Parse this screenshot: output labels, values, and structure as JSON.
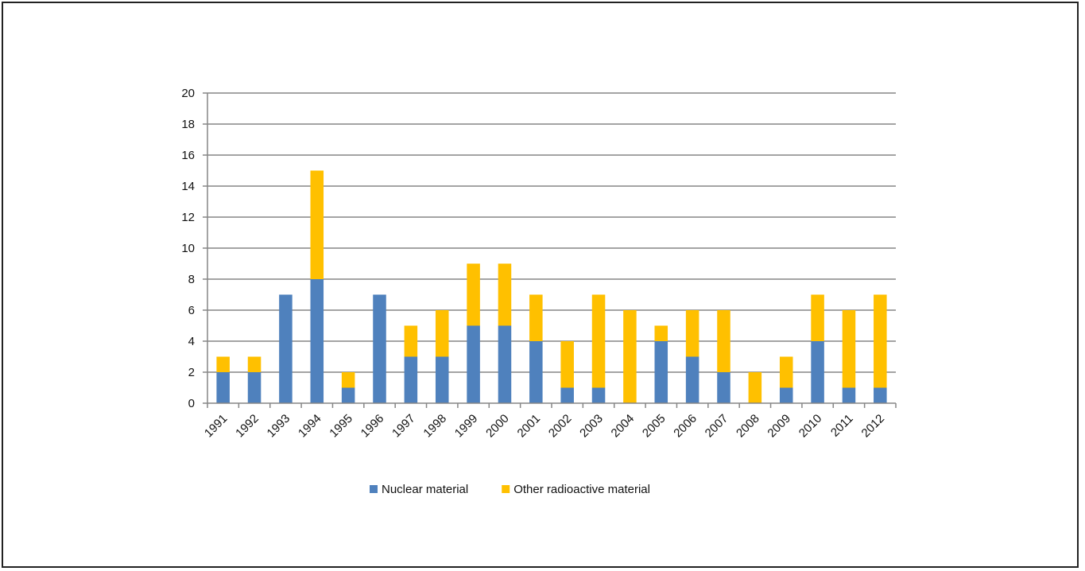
{
  "chart_data": {
    "type": "bar",
    "stacked": true,
    "title": "",
    "xlabel": "",
    "ylabel": "",
    "ylim": [
      0,
      20
    ],
    "yticks": [
      0,
      2,
      4,
      6,
      8,
      10,
      12,
      14,
      16,
      18,
      20
    ],
    "grid": true,
    "legend_position": "bottom",
    "categories": [
      "1991",
      "1992",
      "1993",
      "1994",
      "1995",
      "1996",
      "1997",
      "1998",
      "1999",
      "2000",
      "2001",
      "2002",
      "2003",
      "2004",
      "2005",
      "2006",
      "2007",
      "2008",
      "2009",
      "2010",
      "2011",
      "2012"
    ],
    "series": [
      {
        "name": "Nuclear material",
        "color": "#4F81BD",
        "values": [
          2,
          2,
          7,
          8,
          1,
          7,
          3,
          3,
          5,
          5,
          4,
          1,
          1,
          0,
          4,
          3,
          2,
          0,
          1,
          4,
          1,
          1
        ]
      },
      {
        "name": "Other radioactive material",
        "color": "#FFC000",
        "values": [
          1,
          1,
          0,
          7,
          1,
          0,
          2,
          3,
          4,
          4,
          3,
          3,
          6,
          6,
          1,
          3,
          4,
          2,
          2,
          3,
          5,
          6
        ]
      }
    ]
  }
}
